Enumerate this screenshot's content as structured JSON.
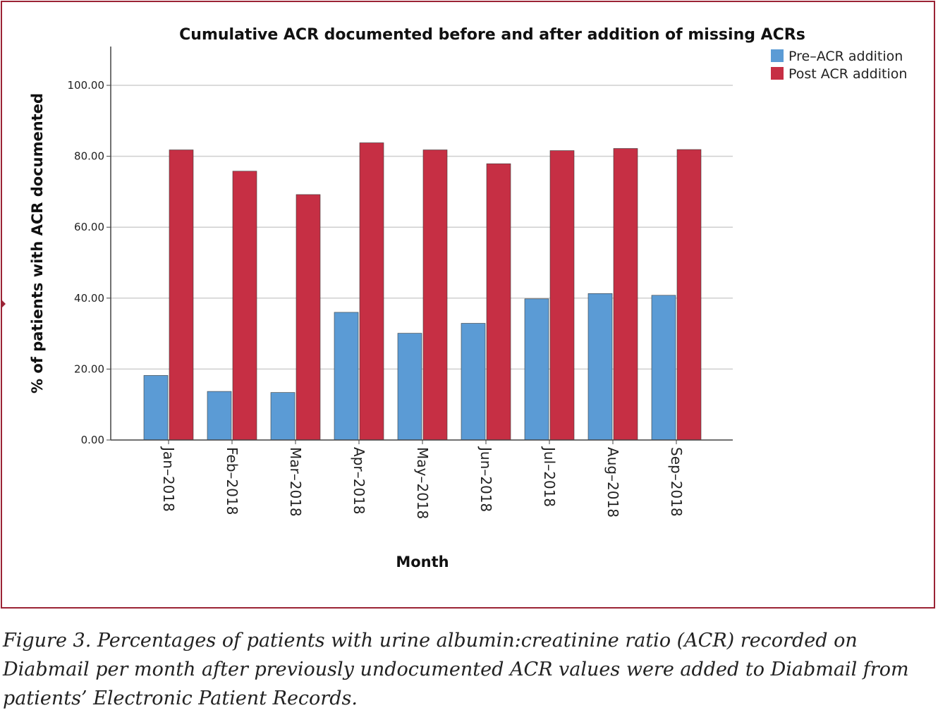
{
  "chart_data": {
    "type": "bar",
    "title": "Cumulative ACR documented before and after addition of missing ACRs",
    "xlabel": "Month",
    "ylabel": "% of patients with  ACR documented",
    "categories": [
      "Jan–2018",
      "Feb–2018",
      "Mar–2018",
      "Apr–2018",
      "May–2018",
      "Jun–2018",
      "Jul–2018",
      "Aug–2018",
      "Sep–2018"
    ],
    "series": [
      {
        "name": "Pre–ACR addition",
        "color": "#5b9bd5",
        "values": [
          18.2,
          13.7,
          13.4,
          36.0,
          30.1,
          32.9,
          39.8,
          41.3,
          40.8
        ]
      },
      {
        "name": "Post ACR addition",
        "color": "#c62f44",
        "values": [
          81.8,
          75.8,
          69.2,
          83.8,
          81.8,
          77.9,
          81.6,
          82.2,
          81.9
        ]
      }
    ],
    "yticks": [
      "0.00",
      "20.00",
      "40.00",
      "60.00",
      "80.00",
      "100.00"
    ],
    "ylim": [
      0,
      110
    ],
    "grid": true,
    "legend": "top-right"
  },
  "caption": "Figure 3. Percentages of patients with urine albumin:creatinine ratio (ACR) recorded on Diabmail per month after previously undocumented ACR values were added to Diabmail from patients’ Electronic Patient Records."
}
